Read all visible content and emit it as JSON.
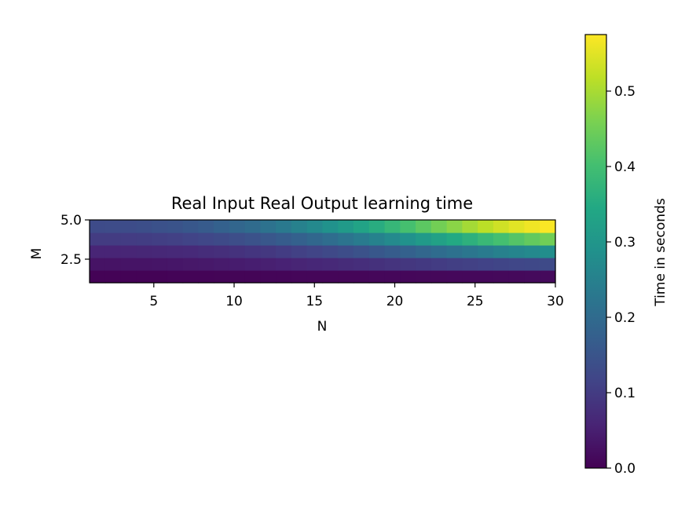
{
  "chart_data": {
    "type": "heatmap",
    "title": "Real Input Real Output learning time",
    "xlabel": "N",
    "ylabel": "M",
    "colorbar_label": "Time in seconds",
    "colormap": "viridis",
    "x_range": [
      1,
      30
    ],
    "y_range": [
      1,
      5
    ],
    "x_ticks": [
      5,
      10,
      15,
      20,
      25,
      30
    ],
    "x_tick_labels": [
      "5",
      "10",
      "15",
      "20",
      "25",
      "30"
    ],
    "y_ticks": [
      2.5,
      5.0
    ],
    "y_tick_labels": [
      "2.5",
      "5.0"
    ],
    "colorbar_range": [
      0.0,
      0.575
    ],
    "colorbar_ticks": [
      0.0,
      0.1,
      0.2,
      0.3,
      0.4,
      0.5
    ],
    "colorbar_tick_labels": [
      "0.0",
      "0.1",
      "0.2",
      "0.3",
      "0.4",
      "0.5"
    ],
    "x": [
      1,
      2,
      3,
      4,
      5,
      6,
      7,
      8,
      9,
      10,
      11,
      12,
      13,
      14,
      15,
      16,
      17,
      18,
      19,
      20,
      21,
      22,
      23,
      24,
      25,
      26,
      27,
      28,
      29,
      30
    ],
    "y": [
      1,
      2,
      3,
      4,
      5
    ],
    "z": [
      [
        0.003,
        0.003,
        0.004,
        0.004,
        0.004,
        0.005,
        0.005,
        0.005,
        0.006,
        0.006,
        0.006,
        0.007,
        0.007,
        0.008,
        0.008,
        0.008,
        0.009,
        0.009,
        0.01,
        0.01,
        0.01,
        0.011,
        0.011,
        0.012,
        0.012,
        0.012,
        0.013,
        0.013,
        0.014,
        0.014
      ],
      [
        0.03,
        0.03,
        0.031,
        0.032,
        0.033,
        0.035,
        0.037,
        0.039,
        0.042,
        0.045,
        0.048,
        0.051,
        0.055,
        0.059,
        0.063,
        0.067,
        0.071,
        0.076,
        0.081,
        0.086,
        0.091,
        0.096,
        0.101,
        0.106,
        0.11,
        0.114,
        0.118,
        0.121,
        0.124,
        0.127
      ],
      [
        0.06,
        0.06,
        0.061,
        0.062,
        0.064,
        0.066,
        0.069,
        0.073,
        0.077,
        0.082,
        0.088,
        0.094,
        0.101,
        0.109,
        0.117,
        0.126,
        0.135,
        0.145,
        0.156,
        0.167,
        0.178,
        0.19,
        0.202,
        0.214,
        0.226,
        0.238,
        0.25,
        0.26,
        0.27,
        0.28
      ],
      [
        0.1,
        0.1,
        0.101,
        0.103,
        0.106,
        0.11,
        0.115,
        0.121,
        0.128,
        0.136,
        0.145,
        0.155,
        0.166,
        0.178,
        0.191,
        0.205,
        0.22,
        0.236,
        0.253,
        0.271,
        0.29,
        0.309,
        0.328,
        0.347,
        0.366,
        0.385,
        0.403,
        0.42,
        0.436,
        0.45
      ],
      [
        0.13,
        0.131,
        0.133,
        0.137,
        0.142,
        0.148,
        0.156,
        0.165,
        0.176,
        0.188,
        0.201,
        0.216,
        0.232,
        0.25,
        0.269,
        0.289,
        0.31,
        0.333,
        0.356,
        0.38,
        0.404,
        0.428,
        0.452,
        0.474,
        0.496,
        0.516,
        0.534,
        0.55,
        0.563,
        0.572
      ]
    ]
  }
}
